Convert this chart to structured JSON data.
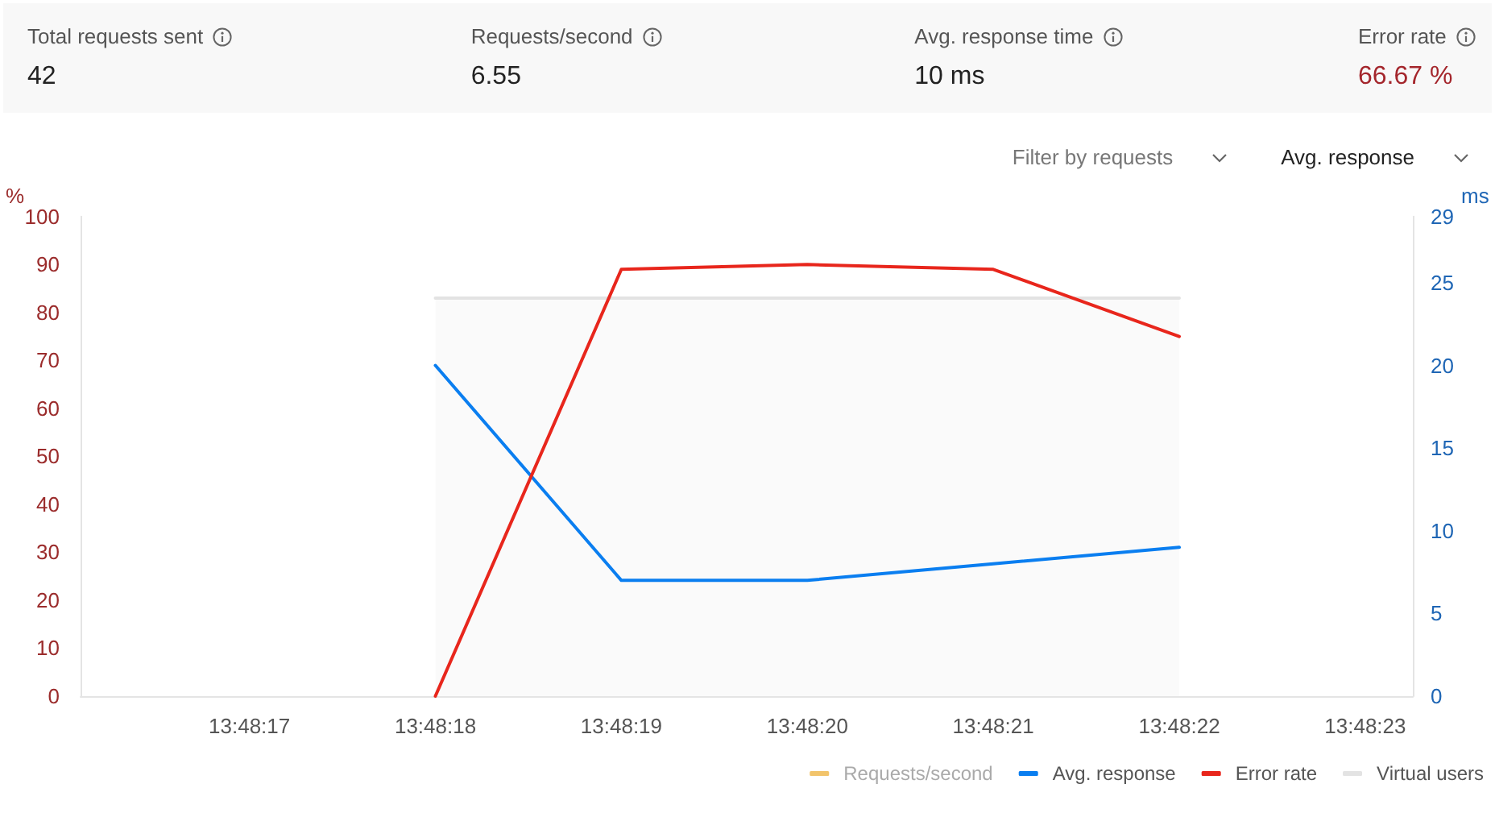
{
  "chart_data": [
    {
      "type": "other",
      "annotations": [
        "Total requests sent",
        "42",
        "Requests/second",
        "6.55",
        "Avg. response time",
        "10 ms",
        "Error rate",
        "66.67 %"
      ]
    },
    {
      "type": "line",
      "annotations": [
        "Filter by requests",
        "Avg. response"
      ],
      "x": [
        13.805,
        13.8052778,
        13.8055556,
        13.8058333,
        13.8061111
      ],
      "series": [
        {
          "name": "Requests/second",
          "color": "#f2c46b",
          "values": [
            null,
            null,
            null,
            null,
            null
          ]
        },
        {
          "name": "Avg. response",
          "color": "#0a7ef0",
          "axis": "y2",
          "values": [
            20,
            7,
            7,
            8,
            9
          ]
        },
        {
          "name": "Error rate",
          "color": "#e8261c",
          "values": [
            0,
            89,
            90,
            89,
            75
          ]
        },
        {
          "name": "Virtual users",
          "type": "area",
          "color": "#e3e3e3",
          "values": [
            83,
            83,
            83,
            83,
            83
          ]
        }
      ],
      "xlim": [
        13.80447,
        13.80646
      ],
      "xticks": [
        {
          "value": 13.8047222,
          "label": "13:48:17"
        },
        {
          "value": 13.805,
          "label": "13:48:18"
        },
        {
          "value": 13.8052778,
          "label": "13:48:19"
        },
        {
          "value": 13.8055556,
          "label": "13:48:20"
        },
        {
          "value": 13.8058333,
          "label": "13:48:21"
        },
        {
          "value": 13.8061111,
          "label": "13:48:22"
        },
        {
          "value": 13.8063889,
          "label": "13:48:23"
        }
      ],
      "ylabel": "%",
      "ylim": [
        0,
        100
      ],
      "yticks": [
        0,
        10,
        20,
        30,
        40,
        50,
        60,
        70,
        80,
        90,
        100
      ],
      "y2label": "ms",
      "y2lim": [
        0,
        29
      ],
      "y2ticks": [
        0,
        5,
        10,
        15,
        20,
        25,
        29
      ],
      "legend": "bottom right"
    }
  ]
}
